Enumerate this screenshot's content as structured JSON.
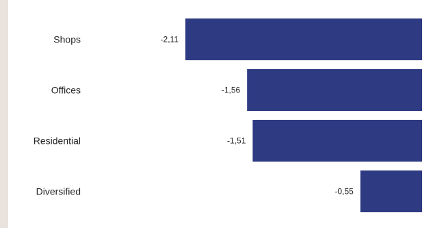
{
  "chart_data": {
    "type": "bar",
    "orientation": "horizontal",
    "categories": [
      "Shops",
      "Offices",
      "Residential",
      "Diversified"
    ],
    "values": [
      -2.11,
      -1.56,
      -1.51,
      -0.55
    ],
    "value_labels": [
      "-2,11",
      "-1,56",
      "-1,51",
      "-0,55"
    ],
    "xlim": [
      -2.11,
      0
    ],
    "title": "",
    "xlabel": "",
    "ylabel": "",
    "grid": false,
    "legend": "none",
    "bar_color": "#2e3a82"
  }
}
